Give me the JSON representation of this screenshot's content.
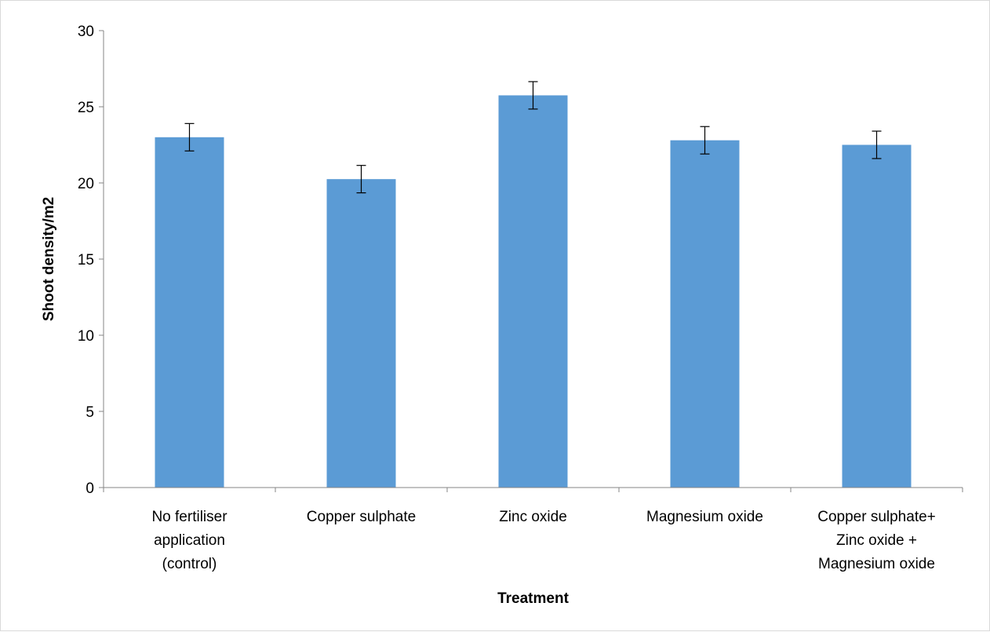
{
  "chart_data": {
    "type": "bar",
    "title": "",
    "xlabel": "Treatment",
    "ylabel": "Shoot density/m2",
    "ylim": [
      0,
      30
    ],
    "yticks": [
      0,
      5,
      10,
      15,
      20,
      25,
      30
    ],
    "grid": false,
    "legend": "none",
    "bar_color": "#5b9bd5",
    "categories": [
      [
        "No fertiliser",
        "application",
        "(control)"
      ],
      [
        "Copper sulphate"
      ],
      [
        "Zinc oxide"
      ],
      [
        "Magnesium oxide"
      ],
      [
        "Copper sulphate+",
        "Zinc oxide +",
        "Magnesium oxide"
      ]
    ],
    "values": [
      23.0,
      20.25,
      25.75,
      22.8,
      22.5
    ],
    "error": [
      0.9,
      0.9,
      0.9,
      0.9,
      0.9
    ]
  }
}
